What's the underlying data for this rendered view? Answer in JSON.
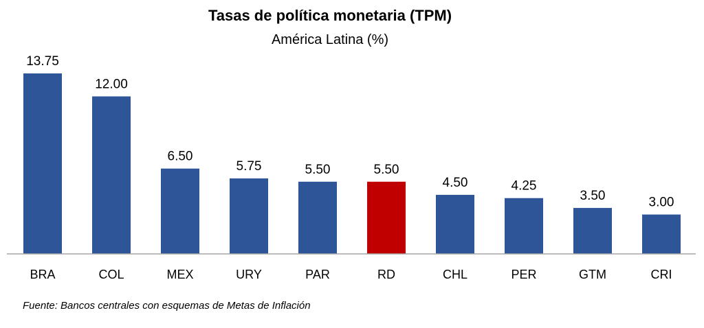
{
  "chart_data": {
    "type": "bar",
    "title": "Tasas de política monetaria (TPM)",
    "subtitle": "América Latina (%)",
    "categories": [
      "BRA",
      "COL",
      "MEX",
      "URY",
      "PAR",
      "RD",
      "CHL",
      "PER",
      "GTM",
      "CRI"
    ],
    "values": [
      13.75,
      12.0,
      6.5,
      5.75,
      5.5,
      5.5,
      4.5,
      4.25,
      3.5,
      3.0
    ],
    "value_labels": [
      "13.75",
      "12.00",
      "6.50",
      "5.75",
      "5.50",
      "5.50",
      "4.50",
      "4.25",
      "3.50",
      "3.00"
    ],
    "highlight_category": "RD",
    "colors": {
      "bar": "#2E5597",
      "highlight": "#C00000",
      "axis": "#A6A6A6"
    },
    "ylim": [
      0,
      14
    ],
    "grid": false,
    "legend": "none",
    "source": "Fuente: Bancos centrales con esquemas de Metas de Inflación"
  }
}
